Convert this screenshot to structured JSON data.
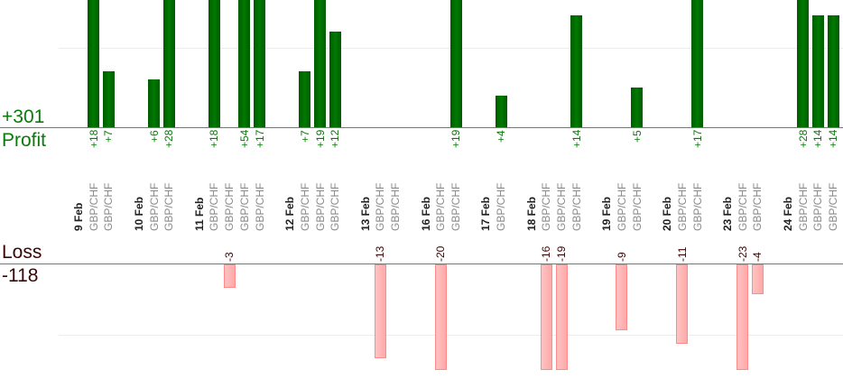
{
  "summary": {
    "profit_total": "+301",
    "profit_label": "Profit",
    "loss_label": "Loss",
    "loss_total": "-118"
  },
  "colors": {
    "profit": "#006400",
    "loss": "#ffb0b0"
  },
  "chart_data": {
    "type": "bar",
    "title": "",
    "groups": [
      {
        "date": "9 Feb",
        "trades": [
          {
            "pair": "GBP/CHF",
            "value": 18
          },
          {
            "pair": "GBP/CHF",
            "value": 7
          }
        ]
      },
      {
        "date": "10 Feb",
        "trades": [
          {
            "pair": "GBP/CHF",
            "value": 6
          },
          {
            "pair": "GBP/CHF",
            "value": 28
          }
        ]
      },
      {
        "date": "11 Feb",
        "trades": [
          {
            "pair": "GBP/CHF",
            "value": 18
          },
          {
            "pair": "GBP/CHF",
            "value": -3
          },
          {
            "pair": "GBP/CHF",
            "value": 54
          },
          {
            "pair": "GBP/CHF",
            "value": 17
          }
        ]
      },
      {
        "date": "12 Feb",
        "trades": [
          {
            "pair": "GBP/CHF",
            "value": 7
          },
          {
            "pair": "GBP/CHF",
            "value": 19
          },
          {
            "pair": "GBP/CHF",
            "value": 12
          }
        ]
      },
      {
        "date": "13 Feb",
        "trades": [
          {
            "pair": "GBP/CHF",
            "value": -13
          },
          {
            "pair": "GBP/CHF",
            "value": null
          }
        ]
      },
      {
        "date": "16 Feb",
        "trades": [
          {
            "pair": "GBP/CHF",
            "value": -20
          },
          {
            "pair": "GBP/CHF",
            "value": 19
          }
        ]
      },
      {
        "date": "17 Feb",
        "trades": [
          {
            "pair": "GBP/CHF",
            "value": 4
          }
        ]
      },
      {
        "date": "18 Feb",
        "trades": [
          {
            "pair": "GBP/CHF",
            "value": -16
          },
          {
            "pair": "GBP/CHF",
            "value": -19
          },
          {
            "pair": "GBP/CHF",
            "value": 14
          }
        ]
      },
      {
        "date": "19 Feb",
        "trades": [
          {
            "pair": "GBP/CHF",
            "value": -9
          },
          {
            "pair": "GBP/CHF",
            "value": 5
          }
        ]
      },
      {
        "date": "20 Feb",
        "trades": [
          {
            "pair": "GBP/CHF",
            "value": -11
          },
          {
            "pair": "GBP/CHF",
            "value": 17
          }
        ]
      },
      {
        "date": "23 Feb",
        "trades": [
          {
            "pair": "GBP/CHF",
            "value": -23
          },
          {
            "pair": "GBP/CHF",
            "value": -4
          }
        ]
      },
      {
        "date": "24 Feb",
        "trades": [
          {
            "pair": "GBP/CHF",
            "value": 28
          },
          {
            "pair": "GBP/CHF",
            "value": 14
          },
          {
            "pair": "GBP/CHF",
            "value": 14
          }
        ]
      }
    ],
    "grid": true
  }
}
